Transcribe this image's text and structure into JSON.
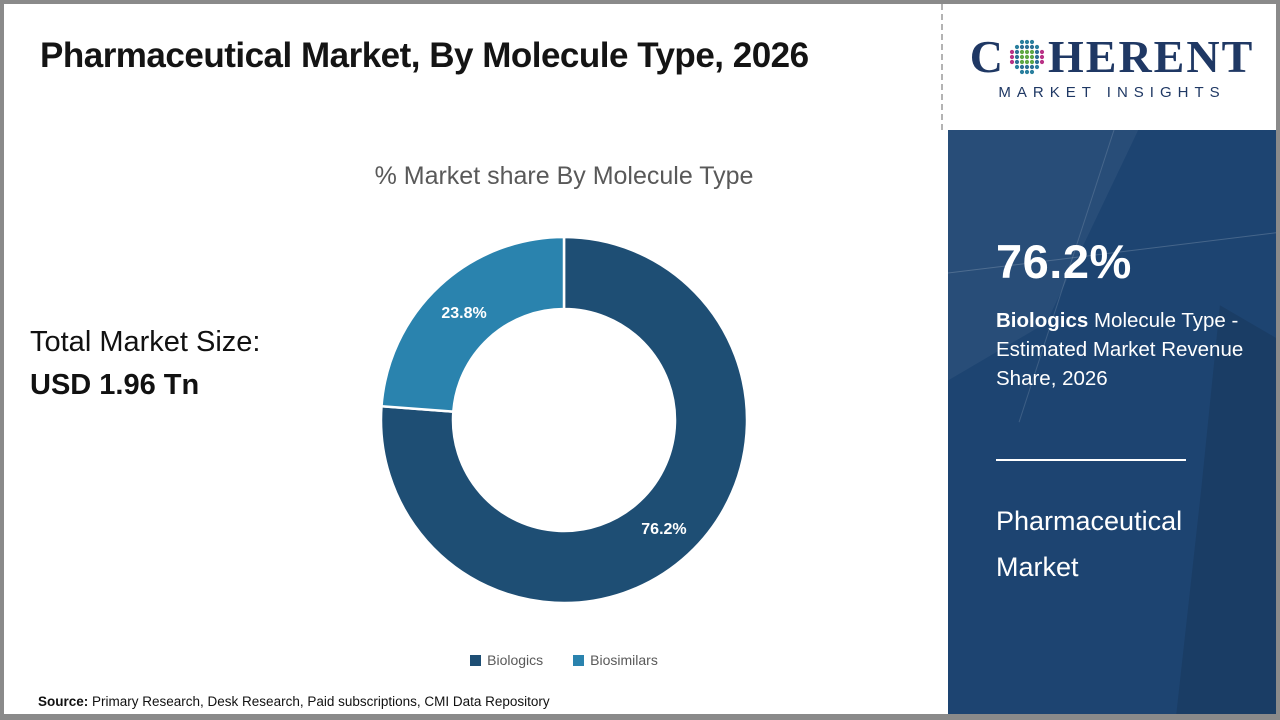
{
  "header": {
    "title": "Pharmaceutical Market, By Molecule Type, 2026"
  },
  "logo": {
    "name_part1": "C",
    "name_part2": "HERENT",
    "subtitle": "MARKET INSIGHTS",
    "brand_color": "#1f3864"
  },
  "left_panel": {
    "total_label": "Total Market Size:",
    "total_value": "USD 1.96 Tn"
  },
  "chart_data": {
    "type": "pie",
    "subtype": "donut",
    "title": "% Market share By Molecule Type",
    "categories": [
      "Biologics",
      "Biosimilars"
    ],
    "values": [
      76.2,
      23.8
    ],
    "data_labels": [
      "76.2%",
      "23.8%"
    ],
    "colors": [
      "#1e4e74",
      "#2a83ae"
    ],
    "start_angle_deg": 0,
    "direction": "clockwise",
    "legend_position": "bottom"
  },
  "sidebar": {
    "background_color": "#1d4471",
    "stat_value": "76.2%",
    "stat_desc_bold": "Biologics",
    "stat_desc_rest": " Molecule Type - Estimated Market Revenue Share, 2026",
    "product_line1": "Pharmaceutical",
    "product_line2": "Market"
  },
  "footer": {
    "source_label": "Source:",
    "source_text": " Primary Research, Desk Research, Paid subscriptions, CMI Data Repository"
  }
}
